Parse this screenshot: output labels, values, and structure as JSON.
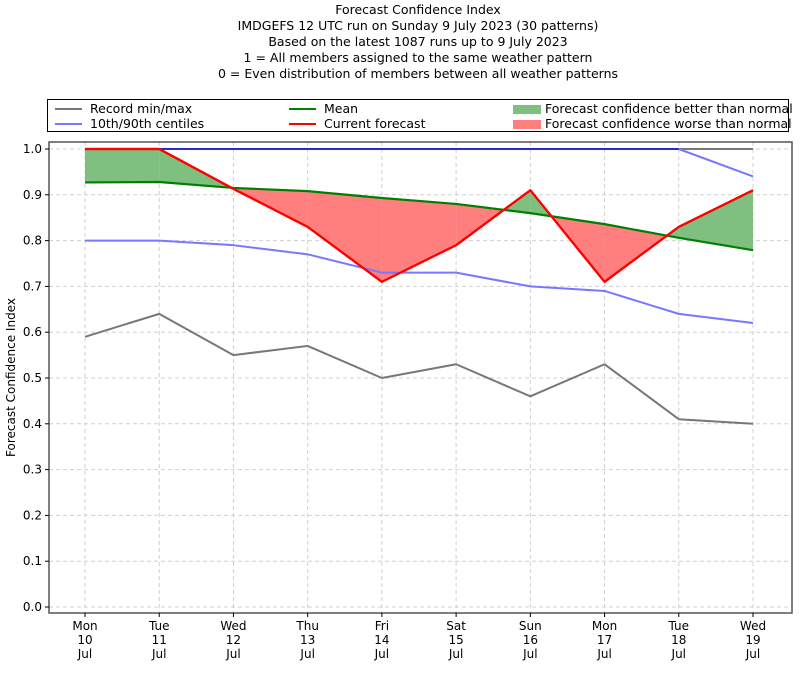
{
  "chart_data": {
    "type": "line",
    "title": "Forecast Confidence Index",
    "subtitle_lines": [
      "IMDGEFS 12 UTC run on Sunday 9 July 2023 (30 patterns)",
      "Based on the latest 1087 runs up to 9 July 2023",
      "1 = All members assigned to the same weather pattern",
      "0 = Even distribution of members between all weather patterns"
    ],
    "xlabel": "",
    "ylabel": "Forecast Confidence Index",
    "ylim": [
      0.0,
      1.0
    ],
    "yticks": [
      "0.0",
      "0.1",
      "0.2",
      "0.3",
      "0.4",
      "0.5",
      "0.6",
      "0.7",
      "0.8",
      "0.9",
      "1.0"
    ],
    "ytick_values": [
      0.0,
      0.1,
      0.2,
      0.3,
      0.4,
      0.5,
      0.6,
      0.7,
      0.8,
      0.9,
      1.0
    ],
    "grid": true,
    "legend_placement": "top (above plot), 3 columns",
    "categories": [
      {
        "day": "Mon",
        "date": "10",
        "month": "Jul"
      },
      {
        "day": "Tue",
        "date": "11",
        "month": "Jul"
      },
      {
        "day": "Wed",
        "date": "12",
        "month": "Jul"
      },
      {
        "day": "Thu",
        "date": "13",
        "month": "Jul"
      },
      {
        "day": "Fri",
        "date": "14",
        "month": "Jul"
      },
      {
        "day": "Sat",
        "date": "15",
        "month": "Jul"
      },
      {
        "day": "Sun",
        "date": "16",
        "month": "Jul"
      },
      {
        "day": "Mon",
        "date": "17",
        "month": "Jul"
      },
      {
        "day": "Tue",
        "date": "18",
        "month": "Jul"
      },
      {
        "day": "Wed",
        "date": "19",
        "month": "Jul"
      }
    ],
    "series": [
      {
        "name": "Record max",
        "legend": "Record min/max",
        "color": "#777777",
        "values": [
          1.0,
          1.0,
          1.0,
          1.0,
          1.0,
          1.0,
          1.0,
          1.0,
          1.0,
          1.0
        ]
      },
      {
        "name": "Record min",
        "legend": "Record min/max",
        "color": "#777777",
        "values": [
          0.59,
          0.64,
          0.55,
          0.57,
          0.5,
          0.53,
          0.46,
          0.53,
          0.41,
          0.4
        ]
      },
      {
        "name": "90th centile",
        "legend": "10th/90th centiles",
        "color": "#7777ff",
        "values": [
          1.0,
          1.0,
          1.0,
          1.0,
          1.0,
          1.0,
          1.0,
          1.0,
          1.0,
          0.94
        ]
      },
      {
        "name": "10th centile",
        "legend": "10th/90th centiles",
        "color": "#7777ff",
        "values": [
          0.8,
          0.8,
          0.79,
          0.77,
          0.73,
          0.73,
          0.7,
          0.69,
          0.64,
          0.62
        ]
      },
      {
        "name": "Mean",
        "legend": "Mean",
        "color": "#008000",
        "values": [
          0.927,
          0.928,
          0.915,
          0.908,
          0.893,
          0.88,
          0.86,
          0.836,
          0.806,
          0.779
        ]
      },
      {
        "name": "Current forecast",
        "legend": "Current forecast",
        "color": "#ff0000",
        "values": [
          1.0,
          1.0,
          0.913,
          0.83,
          0.71,
          0.79,
          0.91,
          0.71,
          0.83,
          0.91
        ]
      }
    ],
    "fills": [
      {
        "name": "Forecast confidence better than normal",
        "color": "#7fbf7f",
        "condition": "forecast > mean"
      },
      {
        "name": "Forecast confidence worse than normal",
        "color": "#ff7f7f",
        "condition": "forecast < mean"
      }
    ]
  },
  "legend": {
    "record": {
      "label": "Record min/max",
      "color": "#777777"
    },
    "centiles": {
      "label": "10th/90th centiles",
      "color": "#7777ff"
    },
    "mean": {
      "label": "Mean",
      "color": "#008000"
    },
    "forecast": {
      "label": "Current forecast",
      "color": "#ff0000"
    },
    "better": {
      "label": "Forecast confidence better than normal",
      "color": "#7fbf7f"
    },
    "worse": {
      "label": "Forecast confidence worse than normal",
      "color": "#ff7f7f"
    }
  }
}
